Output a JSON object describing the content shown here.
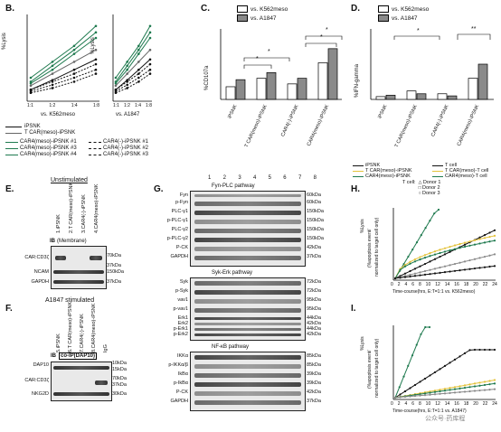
{
  "panels": {
    "B": {
      "label": "B.",
      "ylabel": "%Lysis",
      "xticks": [
        "1:1",
        "1:2",
        "1:4",
        "1:8"
      ],
      "yticks": [
        "0",
        "10",
        "20",
        "30",
        "40",
        "50",
        "60",
        "70"
      ],
      "left_xlabel": "vs. K562meso",
      "right_xlabel": "vs. A1847",
      "legend": {
        "top": [
          "iPSNK",
          "T CAR(meso)-iPSNK"
        ],
        "col1": [
          "CAR4(meso)-iPSNK #1",
          "CAR4(meso)-iPSNK #3",
          "CAR4(meso)-iPSNK #4"
        ],
        "col2": [
          "CAR4(-)-iPSNK #1",
          "CAR4(-)-iPSNK #2",
          "CAR4(-)-iPSNK #3"
        ]
      }
    },
    "C": {
      "label": "C.",
      "ylabel": "%CD107a",
      "legend": [
        "vs. K562meso",
        "vs. A1847"
      ],
      "yticks": [
        "0",
        "10",
        "20",
        "30",
        "40",
        "50",
        "60"
      ],
      "categories": [
        "iPSNK",
        "T CAR(meso)-iPSNK",
        "CAR4(-)-iPSNK",
        "CAR4(meso)-iPSNK"
      ],
      "sig": [
        "*",
        "*",
        "*",
        "*"
      ]
    },
    "D": {
      "label": "D.",
      "ylabel": "%IFN-gamma",
      "legend": [
        "vs. K562meso",
        "vs. A1847"
      ],
      "yticks": [
        "0",
        "10",
        "20",
        "30",
        "40",
        "50",
        "60"
      ],
      "categories": [
        "iPSNK",
        "T CAR(meso)-iPSNK",
        "CAR4(-)-iPSNK",
        "CAR4(meso)-iPSNK"
      ],
      "sig": [
        "*",
        "**"
      ]
    },
    "E": {
      "label": "E.",
      "title": "Unstimulated",
      "lanes": [
        "1.iPSNK",
        "2.T CAR(meso)-iPSNK",
        "3.CAR4(-)-iPSNK",
        "4.CAR4(meso)-iPSNK"
      ],
      "ib": "IB",
      "ib_title": "(Membrane)",
      "rows_left": [
        "CAR:CD3ζ",
        "NCAM",
        "GAPDH"
      ],
      "rows_right": [
        "70kDa",
        "37kDa",
        "150kDa",
        "37kDa"
      ]
    },
    "F": {
      "label": "F.",
      "title": "A1847 stimulated",
      "lanes": [
        "5.iPSNK",
        "6.T CAR(meso)-iPSNK",
        "7.CAR4(-)-iPSNK",
        "8.CAR4(meso)-iPSNK",
        "IgG"
      ],
      "ib": "IB",
      "ib_title": "co-IP(DAP10)",
      "rows_left": [
        "DAP10",
        "CAR:CD3ζ",
        "NKG2D"
      ],
      "rows_right": [
        "10kDa",
        "15kDa",
        "70kDa",
        "37kDa",
        "30kDa"
      ]
    },
    "G": {
      "label": "G.",
      "lane_numbers": [
        "1",
        "2",
        "3",
        "4",
        "5",
        "6",
        "7",
        "8"
      ],
      "sections": [
        {
          "title": "Fyn-PLC pathway",
          "left": [
            "Fyn",
            "p-Fyn",
            "PLC-γ1",
            "p-PLC-γ1",
            "PLC-γ2",
            "p-PLC-γ2",
            "P-CK",
            "GAPDH"
          ],
          "right": [
            "60kDa",
            "60kDa",
            "150kDa",
            "150kDa",
            "150kDa",
            "150kDa",
            "42kDa",
            "37kDa"
          ]
        },
        {
          "title": "Syk-Erk pathway",
          "left": [
            "Syk",
            "p-Syk",
            "vav1",
            "p-vav1",
            "Erk1",
            "Erk2",
            "p-Erk1",
            "p-Erk2"
          ],
          "right": [
            "72kDa",
            "72kDa",
            "95kDa",
            "95kDa",
            "44kDa",
            "42kDa",
            "44kDa",
            "42kDa"
          ]
        },
        {
          "title": "NF-κB pathway",
          "left": [
            "IKKα",
            "p-IKKα/β",
            "IkBα",
            "p-IkBα",
            "P-CK",
            "GAPDH"
          ],
          "right": [
            "85kDa",
            "85kDa",
            "39kDa",
            "39kDa",
            "42kDa",
            "37kDa"
          ]
        }
      ]
    },
    "H": {
      "label": "H.",
      "ylabel_1": "%Lysis",
      "ylabel_2": "(%apoptosis event/",
      "ylabel_3": "normalized to target cell only)",
      "xlabel": "Time-course(hrs, E:T=1:1 vs. K562meso)",
      "xticks": [
        "0",
        "2",
        "4",
        "6",
        "8",
        "10",
        "12",
        "14",
        "16",
        "18",
        "20",
        "22",
        "24"
      ],
      "yticks": [
        "0",
        "10",
        "20",
        "30",
        "40",
        "50",
        "60",
        "70",
        "80",
        "90",
        "100"
      ],
      "legend_left": [
        "iPSNK",
        "T CAR(meso)-iPSNK",
        "CAR4(meso)-iPSNK"
      ],
      "legend_right": [
        "T cell",
        "T CAR(meso)-T cell",
        "CAR4(meso)-T cell"
      ],
      "donor_title": "T cell:",
      "donors": [
        "Donor 1",
        "Donor 2",
        "Donor 3"
      ]
    },
    "I": {
      "label": "I.",
      "ylabel_1": "%Lysis",
      "ylabel_2": "(%apoptosis event/",
      "ylabel_3": "normalized to target cell only)",
      "xlabel": "Time-course(hrs, E:T=1:1 vs. A1847)",
      "xticks": [
        "0",
        "2",
        "4",
        "6",
        "8",
        "10",
        "12",
        "14",
        "16",
        "18",
        "20",
        "22",
        "24"
      ],
      "yticks": [
        "0",
        "10",
        "20",
        "30",
        "40",
        "50",
        "60",
        "70",
        "80",
        "90",
        "100"
      ]
    }
  },
  "watermark": "公众号·药库程",
  "colors": {
    "green": "#1f7a4f",
    "yellow": "#e3c23b",
    "grey": "#8a8a8a",
    "dark": "#111111"
  }
}
